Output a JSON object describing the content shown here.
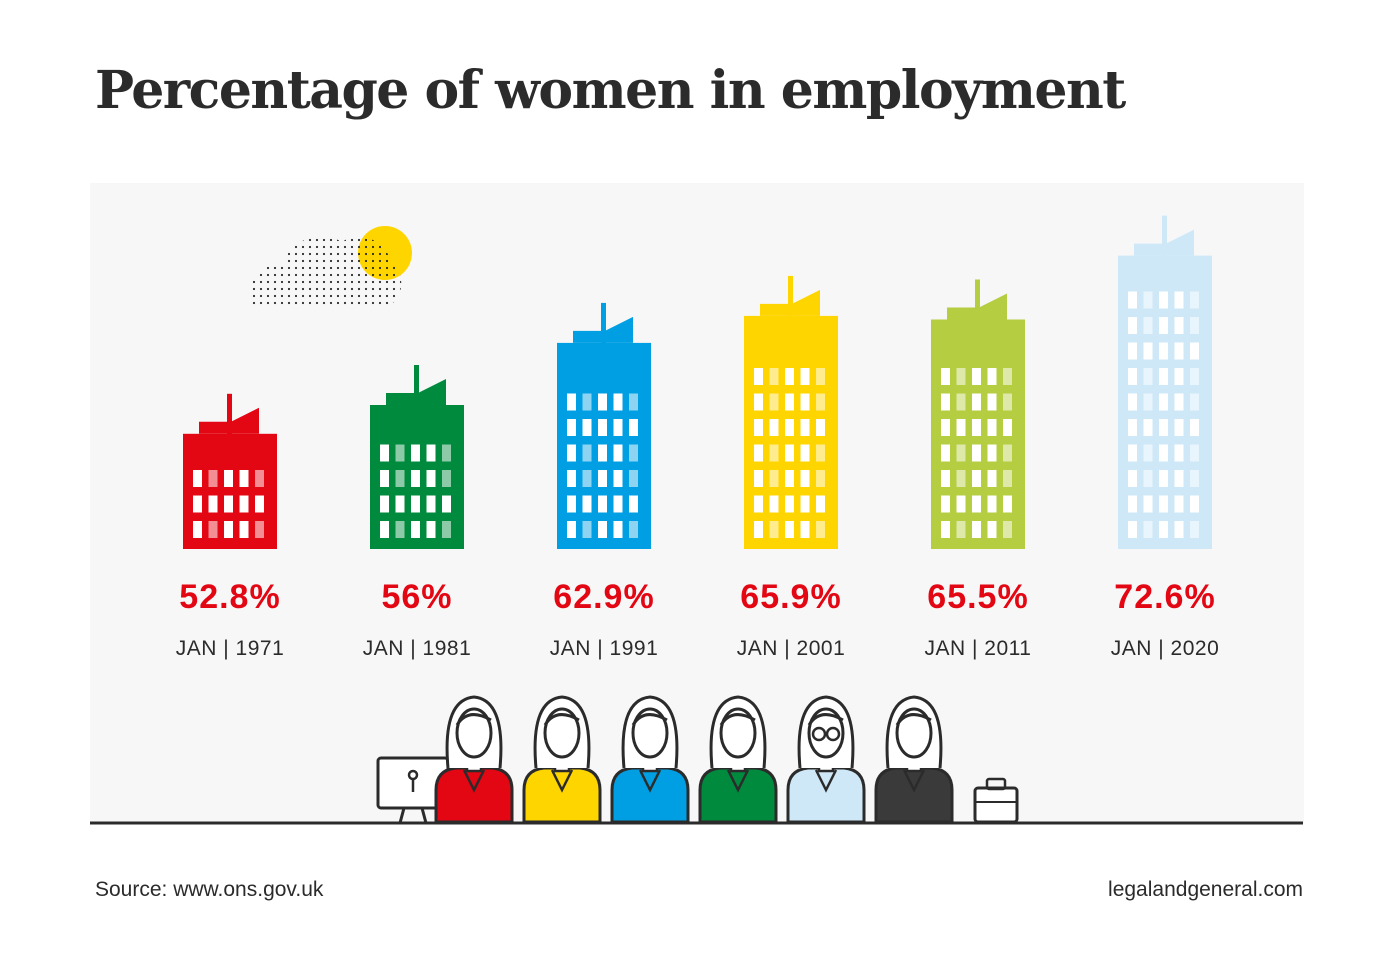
{
  "title": "Percentage of women in employment",
  "chart_data": {
    "type": "bar",
    "categories": [
      "JAN | 1971",
      "JAN | 1981",
      "JAN | 1991",
      "JAN | 2001",
      "JAN | 2011",
      "JAN | 2020"
    ],
    "value_labels": [
      "52.8%",
      "56%",
      "62.9%",
      "65.9%",
      "65.5%",
      "72.6%"
    ],
    "values": [
      52.8,
      56,
      62.9,
      65.9,
      65.5,
      72.6
    ],
    "title": "Percentage of women in employment",
    "colors": [
      "#e30613",
      "#008a3e",
      "#009fe3",
      "#ffd500",
      "#b4cd41",
      "#cfe8f8"
    ]
  },
  "footer": {
    "source": "Source: www.ons.gov.uk",
    "site": "legalandgeneral.com"
  },
  "colors": {
    "value_label": "#e30613",
    "text": "#2b2b2b",
    "panel": "#f7f7f7",
    "sun": "#ffd500"
  }
}
